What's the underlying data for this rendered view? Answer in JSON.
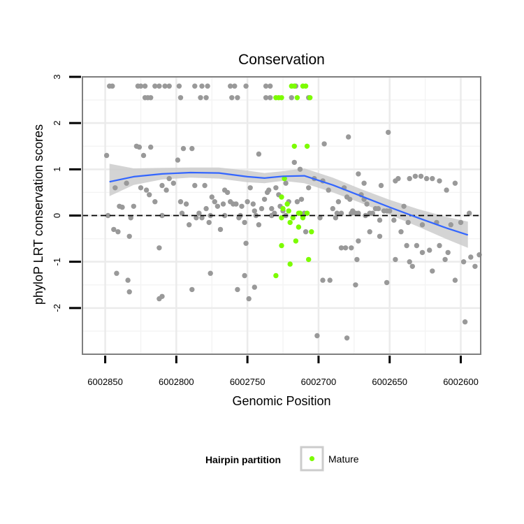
{
  "chart_data": {
    "type": "scatter",
    "title": "Conservation",
    "xlabel": "Genomic Position",
    "ylabel": "phyloP LRT conservation scores",
    "xlim": [
      6002866,
      6002586
    ],
    "x_reversed": true,
    "ylim": [
      -3.0,
      3.0
    ],
    "x_ticks": [
      6002850,
      6002800,
      6002750,
      6002700,
      6002650,
      6002600
    ],
    "y_ticks": [
      -2,
      -1,
      0,
      1,
      2,
      3
    ],
    "grid": true,
    "hline": {
      "y": 0,
      "style": "dashed"
    },
    "legend": {
      "title": "Hairpin partition",
      "entries": [
        {
          "label": "Mature",
          "color": "#7cfc00"
        }
      ],
      "position": "bottom"
    },
    "colors": {
      "other": "#999999",
      "mature": "#7cfc00",
      "smooth_line": "#3366ff",
      "band": "#cccccc",
      "panel_border": "#7f7f7f",
      "grid": "#ebebeb"
    },
    "smooth": {
      "x": [
        6002847,
        6002830,
        6002810,
        6002790,
        6002770,
        6002750,
        6002738,
        6002725,
        6002710,
        6002690,
        6002670,
        6002650,
        6002630,
        6002610,
        6002595
      ],
      "y": [
        0.73,
        0.84,
        0.9,
        0.93,
        0.92,
        0.84,
        0.81,
        0.85,
        0.86,
        0.66,
        0.42,
        0.18,
        -0.05,
        -0.27,
        -0.42
      ],
      "lower": [
        0.42,
        0.66,
        0.78,
        0.82,
        0.8,
        0.72,
        0.7,
        0.75,
        0.7,
        0.5,
        0.27,
        0.02,
        -0.24,
        -0.51,
        -0.7
      ],
      "upper": [
        1.12,
        1.02,
        1.03,
        1.04,
        1.04,
        0.97,
        0.92,
        0.96,
        1.02,
        0.82,
        0.57,
        0.34,
        0.14,
        -0.03,
        -0.13
      ]
    },
    "series": [
      {
        "name": "Other",
        "color": "#999999",
        "points": [
          [
            6002847,
            2.8
          ],
          [
            6002845,
            2.8
          ],
          [
            6002827,
            2.8
          ],
          [
            6002825,
            2.8
          ],
          [
            6002822,
            2.8
          ],
          [
            6002815,
            2.8
          ],
          [
            6002812,
            2.8
          ],
          [
            6002808,
            2.8
          ],
          [
            6002805,
            2.8
          ],
          [
            6002798,
            2.8
          ],
          [
            6002787,
            2.8
          ],
          [
            6002782,
            2.8
          ],
          [
            6002778,
            2.8
          ],
          [
            6002762,
            2.8
          ],
          [
            6002759,
            2.8
          ],
          [
            6002751,
            2.8
          ],
          [
            6002737,
            2.8
          ],
          [
            6002734,
            2.8
          ],
          [
            6002716,
            2.8
          ],
          [
            6002822,
            2.55
          ],
          [
            6002820,
            2.55
          ],
          [
            6002818,
            2.55
          ],
          [
            6002797,
            2.55
          ],
          [
            6002783,
            2.55
          ],
          [
            6002779,
            2.55
          ],
          [
            6002761,
            2.55
          ],
          [
            6002757,
            2.55
          ],
          [
            6002737,
            2.55
          ],
          [
            6002734,
            2.55
          ],
          [
            6002719,
            2.55
          ],
          [
            6002707,
            2.55
          ],
          [
            6002849,
            1.3
          ],
          [
            6002843,
            0.6
          ],
          [
            6002840,
            0.2
          ],
          [
            6002838,
            0.18
          ],
          [
            6002835,
            0.7
          ],
          [
            6002833,
            -0.45
          ],
          [
            6002830,
            0.2
          ],
          [
            6002828,
            1.5
          ],
          [
            6002826,
            1.48
          ],
          [
            6002825,
            0.6
          ],
          [
            6002823,
            1.3
          ],
          [
            6002821,
            0.55
          ],
          [
            6002819,
            0.45
          ],
          [
            6002818,
            1.48
          ],
          [
            6002815,
            0.3
          ],
          [
            6002812,
            -0.7
          ],
          [
            6002810,
            0.65
          ],
          [
            6002807,
            0.55
          ],
          [
            6002805,
            0.8
          ],
          [
            6002802,
            0.7
          ],
          [
            6002799,
            1.2
          ],
          [
            6002797,
            0.3
          ],
          [
            6002795,
            1.45
          ],
          [
            6002793,
            0.25
          ],
          [
            6002791,
            -0.2
          ],
          [
            6002789,
            1.45
          ],
          [
            6002787,
            0.65
          ],
          [
            6002784,
            0.05
          ],
          [
            6002782,
            -0.05
          ],
          [
            6002780,
            0.65
          ],
          [
            6002779,
            0.15
          ],
          [
            6002777,
            -0.15
          ],
          [
            6002775,
            0.4
          ],
          [
            6002773,
            0.3
          ],
          [
            6002771,
            0.2
          ],
          [
            6002769,
            -0.3
          ],
          [
            6002767,
            0.25
          ],
          [
            6002766,
            0.55
          ],
          [
            6002764,
            0.5
          ],
          [
            6002762,
            0.3
          ],
          [
            6002760,
            0.25
          ],
          [
            6002758,
            0.25
          ],
          [
            6002756,
            -0.05
          ],
          [
            6002754,
            0.2
          ],
          [
            6002752,
            -0.15
          ],
          [
            6002750,
            0.3
          ],
          [
            6002748,
            0.6
          ],
          [
            6002746,
            0.25
          ],
          [
            6002745,
            0.1
          ],
          [
            6002742,
            -0.2
          ],
          [
            6002740,
            0.15
          ],
          [
            6002738,
            0.35
          ],
          [
            6002736,
            0.5
          ],
          [
            6002735,
            0.55
          ],
          [
            6002733,
            0.15
          ],
          [
            6002731,
            0.05
          ],
          [
            6002730,
            0.6
          ],
          [
            6002728,
            0.45
          ],
          [
            6002727,
            0.2
          ],
          [
            6002725,
            0.1
          ],
          [
            6002723,
            0.7
          ],
          [
            6002721,
            0.3
          ],
          [
            6002717,
            1.15
          ],
          [
            6002715,
            0.3
          ],
          [
            6002712,
            0.35
          ],
          [
            6002710,
            0.05
          ],
          [
            6002707,
            0.6
          ],
          [
            6002703,
            0.8
          ],
          [
            6002697,
            0.75
          ],
          [
            6002693,
            0.55
          ],
          [
            6002690,
            0.15
          ],
          [
            6002688,
            -0.05
          ],
          [
            6002686,
            0.3
          ],
          [
            6002684,
            0.05
          ],
          [
            6002682,
            0.6
          ],
          [
            6002680,
            0.4
          ],
          [
            6002678,
            0.35
          ],
          [
            6002676,
            0.1
          ],
          [
            6002674,
            0.05
          ],
          [
            6002672,
            0.05
          ],
          [
            6002670,
            0.45
          ],
          [
            6002668,
            0.35
          ],
          [
            6002666,
            0.25
          ],
          [
            6002664,
            0.05
          ],
          [
            6002662,
            0.05
          ],
          [
            6002660,
            0.15
          ],
          [
            6002658,
            0.15
          ],
          [
            6002656,
            0.65
          ],
          [
            6002654,
            0.1
          ],
          [
            6002652,
            0.1
          ],
          [
            6002650,
            0.1
          ],
          [
            6002646,
            0.75
          ],
          [
            6002644,
            0.8
          ],
          [
            6002640,
            0.2
          ],
          [
            6002636,
            0.8
          ],
          [
            6002632,
            0.85
          ],
          [
            6002628,
            0.85
          ],
          [
            6002624,
            0.8
          ],
          [
            6002620,
            0.8
          ],
          [
            6002615,
            0.75
          ],
          [
            6002610,
            0.55
          ],
          [
            6002604,
            0.7
          ],
          [
            6002594,
            0.05
          ],
          [
            6002848,
            0.0
          ],
          [
            6002844,
            -0.3
          ],
          [
            6002841,
            -0.35
          ],
          [
            6002832,
            -0.05
          ],
          [
            6002810,
            0.0
          ],
          [
            6002796,
            0.05
          ],
          [
            6002786,
            -0.05
          ],
          [
            6002776,
            0.0
          ],
          [
            6002766,
            0.0
          ],
          [
            6002755,
            0.0
          ],
          [
            6002744,
            0.0
          ],
          [
            6002733,
            0.0
          ],
          [
            6002723,
            0.0
          ],
          [
            6002711,
            0.0
          ],
          [
            6002699,
            -0.05
          ],
          [
            6002687,
            0.05
          ],
          [
            6002677,
            0.05
          ],
          [
            6002667,
            0.0
          ],
          [
            6002657,
            -0.1
          ],
          [
            6002647,
            -0.1
          ],
          [
            6002637,
            -0.15
          ],
          [
            6002627,
            -0.2
          ],
          [
            6002617,
            -0.15
          ],
          [
            6002607,
            -0.2
          ],
          [
            6002600,
            -0.15
          ],
          [
            6002842,
            -1.25
          ],
          [
            6002834,
            -1.4
          ],
          [
            6002833,
            -1.65
          ],
          [
            6002812,
            -1.8
          ],
          [
            6002810,
            -1.75
          ],
          [
            6002789,
            -1.6
          ],
          [
            6002776,
            -1.25
          ],
          [
            6002757,
            -1.6
          ],
          [
            6002752,
            -1.3
          ],
          [
            6002751,
            -0.6
          ],
          [
            6002749,
            -1.8
          ],
          [
            6002745,
            -1.55
          ],
          [
            6002709,
            -0.35
          ],
          [
            6002701,
            -2.6
          ],
          [
            6002697,
            -1.4
          ],
          [
            6002692,
            -1.4
          ],
          [
            6002684,
            -0.7
          ],
          [
            6002681,
            -0.7
          ],
          [
            6002680,
            -2.65
          ],
          [
            6002677,
            -0.7
          ],
          [
            6002674,
            -1.5
          ],
          [
            6002673,
            -0.95
          ],
          [
            6002672,
            -0.55
          ],
          [
            6002664,
            -0.35
          ],
          [
            6002657,
            -0.45
          ],
          [
            6002652,
            -1.45
          ],
          [
            6002646,
            -0.95
          ],
          [
            6002642,
            -0.35
          ],
          [
            6002638,
            -0.65
          ],
          [
            6002634,
            -1.1
          ],
          [
            6002631,
            -0.65
          ],
          [
            6002627,
            -0.8
          ],
          [
            6002622,
            -0.75
          ],
          [
            6002615,
            -0.65
          ],
          [
            6002611,
            -0.95
          ],
          [
            6002604,
            -1.4
          ],
          [
            6002597,
            -2.3
          ],
          [
            6002593,
            -0.9
          ],
          [
            6002590,
            -1.1
          ],
          [
            6002609,
            -0.8
          ],
          [
            6002587,
            -0.85
          ],
          [
            6002636,
            -1.0
          ],
          [
            6002620,
            -1.2
          ],
          [
            6002598,
            -1.0
          ],
          [
            6002696,
            1.55
          ],
          [
            6002679,
            1.7
          ],
          [
            6002651,
            1.8
          ],
          [
            6002713,
            1.0
          ],
          [
            6002672,
            0.9
          ],
          [
            6002668,
            0.7
          ],
          [
            6002742,
            1.33
          ]
        ]
      },
      {
        "name": "Mature",
        "color": "#7cfc00",
        "points": [
          [
            6002719,
            2.8
          ],
          [
            6002717,
            2.8
          ],
          [
            6002711,
            2.8
          ],
          [
            6002709,
            2.8
          ],
          [
            6002730,
            2.55
          ],
          [
            6002728,
            2.55
          ],
          [
            6002726,
            2.55
          ],
          [
            6002715,
            2.55
          ],
          [
            6002706,
            2.55
          ],
          [
            6002717,
            1.5
          ],
          [
            6002708,
            1.5
          ],
          [
            6002724,
            0.8
          ],
          [
            6002726,
            0.4
          ],
          [
            6002722,
            0.25
          ],
          [
            6002725,
            0.15
          ],
          [
            6002721,
            0.1
          ],
          [
            6002713,
            0.05
          ],
          [
            6002708,
            0.05
          ],
          [
            6002726,
            -0.05
          ],
          [
            6002720,
            -0.15
          ],
          [
            6002718,
            -0.05
          ],
          [
            6002714,
            -0.25
          ],
          [
            6002711,
            -0.05
          ],
          [
            6002705,
            -0.35
          ],
          [
            6002716,
            -0.55
          ],
          [
            6002726,
            -0.65
          ],
          [
            6002720,
            -1.05
          ],
          [
            6002730,
            -1.3
          ],
          [
            6002707,
            -0.95
          ],
          [
            6002714,
            0.05
          ]
        ]
      }
    ]
  }
}
